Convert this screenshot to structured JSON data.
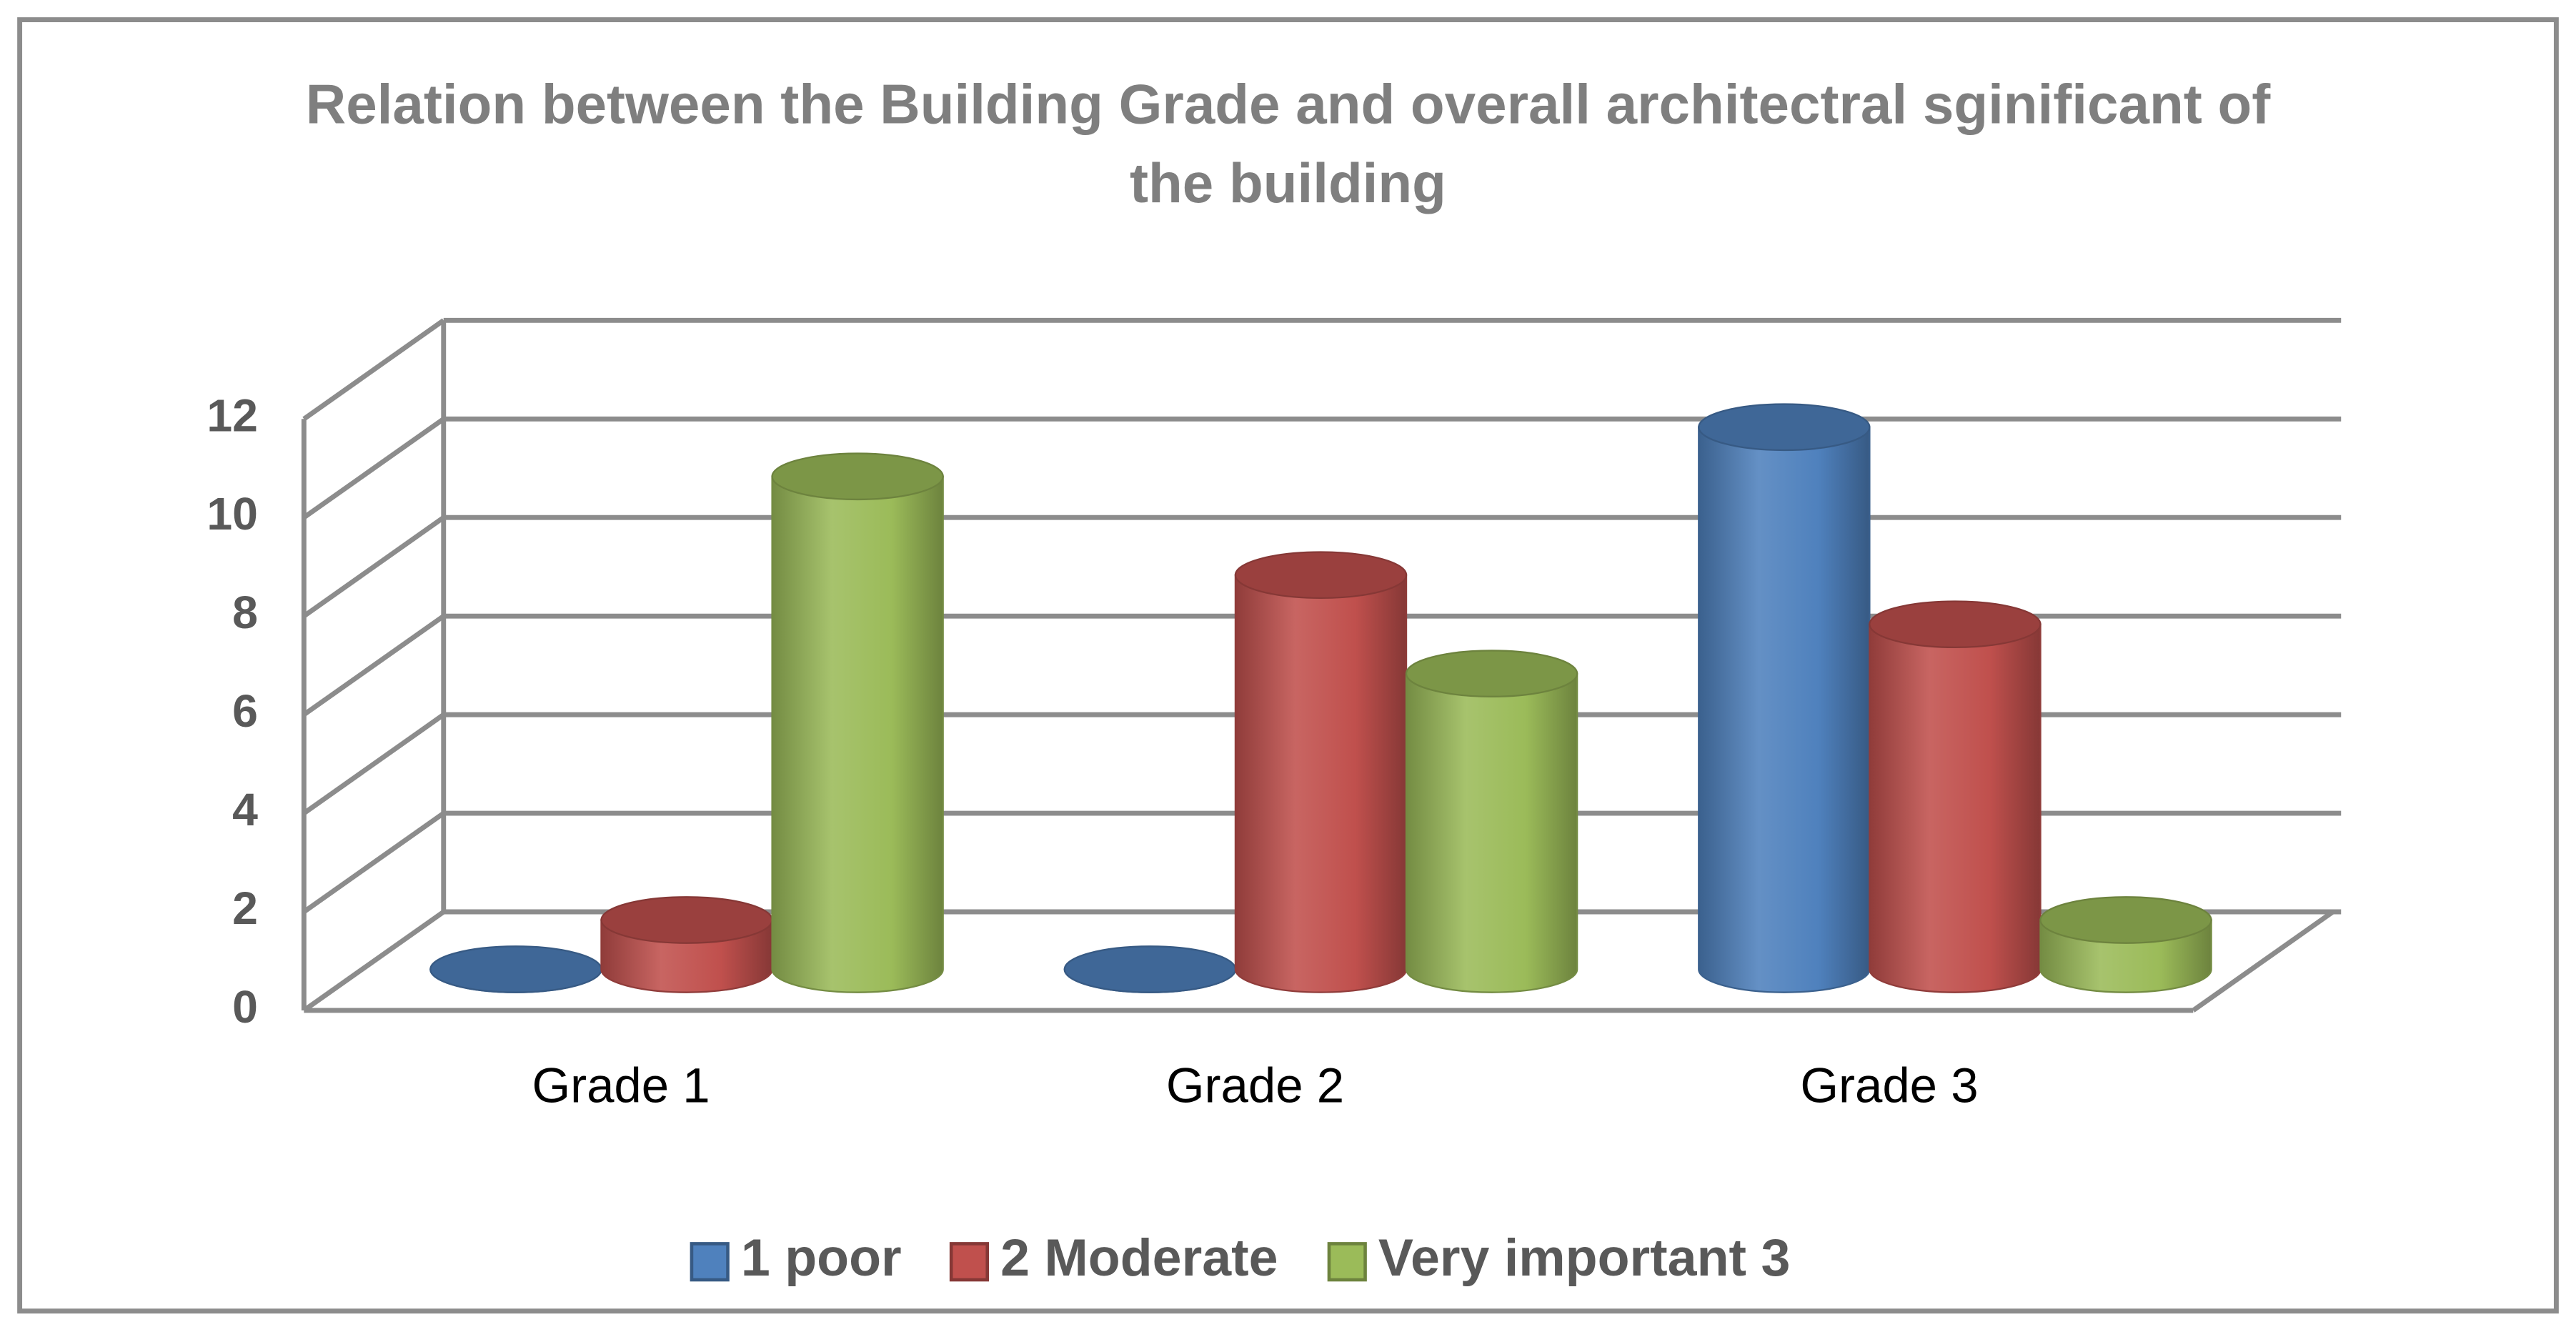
{
  "chart_data": {
    "type": "bar3d",
    "title": "Relation between the Building Grade and overall architectral sginificant of the building",
    "categories": [
      "Grade 1",
      "Grade 2",
      "Grade 3"
    ],
    "series": [
      {
        "name": "1 poor",
        "color": "#4f81bd",
        "values": [
          0,
          0,
          11
        ]
      },
      {
        "name": "2 Moderate",
        "color": "#c0504d",
        "values": [
          1,
          8,
          7
        ]
      },
      {
        "name": "Very important 3",
        "color": "#9bbb59",
        "values": [
          10,
          6,
          1
        ]
      }
    ],
    "ylim": [
      0,
      12
    ],
    "yticks": [
      0,
      2,
      4,
      6,
      8,
      10,
      12
    ],
    "grid": true,
    "legend": "bottom"
  }
}
